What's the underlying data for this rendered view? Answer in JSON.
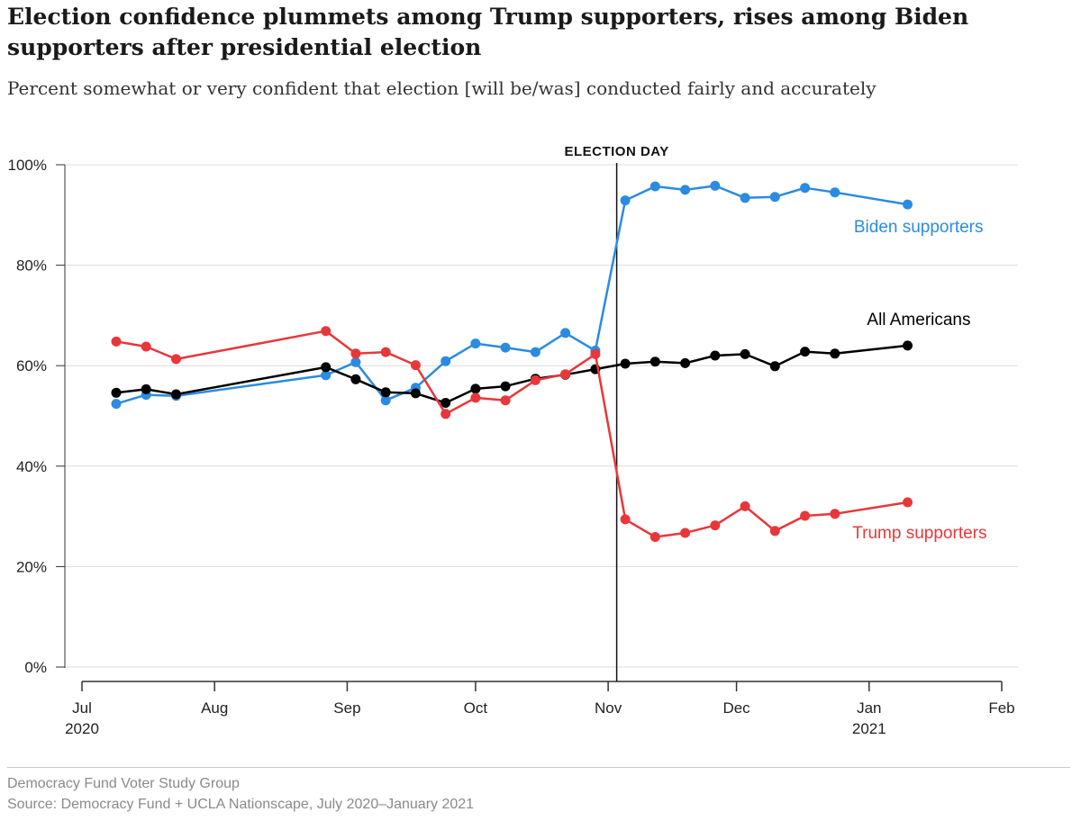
{
  "title": "Election confidence plummets among Trump supporters, rises among Biden supporters after presidential election",
  "subtitle": "Percent somewhat or very confident that election [will be/was] conducted fairly and accurately",
  "footer": {
    "org": "Democracy Fund Voter Study Group",
    "source": "Source: Democracy Fund + UCLA Nationscape, July 2020–January 2021"
  },
  "chart_data": {
    "type": "line",
    "xlabel": "",
    "ylabel": "",
    "x_range": [
      "2020-07-01",
      "2021-02-01"
    ],
    "ylim": [
      0,
      100
    ],
    "yticks": [
      0,
      20,
      40,
      60,
      80,
      100
    ],
    "ytick_labels": [
      "0%",
      "20%",
      "40%",
      "60%",
      "80%",
      "100%"
    ],
    "xticks": [
      {
        "date": "2020-07-01",
        "label": "Jul",
        "label2": "2020"
      },
      {
        "date": "2020-08-01",
        "label": "Aug",
        "label2": ""
      },
      {
        "date": "2020-09-01",
        "label": "Sep",
        "label2": ""
      },
      {
        "date": "2020-10-01",
        "label": "Oct",
        "label2": ""
      },
      {
        "date": "2020-11-01",
        "label": "Nov",
        "label2": ""
      },
      {
        "date": "2020-12-01",
        "label": "Dec",
        "label2": ""
      },
      {
        "date": "2021-01-01",
        "label": "Jan",
        "label2": "2021"
      },
      {
        "date": "2021-02-01",
        "label": "Feb",
        "label2": ""
      }
    ],
    "grid": true,
    "annotation": {
      "label": "ELECTION DAY",
      "date": "2020-11-03"
    },
    "series": [
      {
        "name": "Biden supporters",
        "color": "#2b8be0",
        "points": [
          {
            "date": "2020-07-09",
            "value": 52.4
          },
          {
            "date": "2020-07-16",
            "value": 54.2
          },
          {
            "date": "2020-07-23",
            "value": 54.0
          },
          {
            "date": "2020-08-27",
            "value": 58.1
          },
          {
            "date": "2020-09-03",
            "value": 60.7
          },
          {
            "date": "2020-09-10",
            "value": 53.1
          },
          {
            "date": "2020-09-17",
            "value": 55.6
          },
          {
            "date": "2020-09-24",
            "value": 60.9
          },
          {
            "date": "2020-10-01",
            "value": 64.4
          },
          {
            "date": "2020-10-08",
            "value": 63.6
          },
          {
            "date": "2020-10-15",
            "value": 62.7
          },
          {
            "date": "2020-10-22",
            "value": 66.5
          },
          {
            "date": "2020-10-29",
            "value": 63.0
          },
          {
            "date": "2020-11-05",
            "value": 92.9
          },
          {
            "date": "2020-11-12",
            "value": 95.7
          },
          {
            "date": "2020-11-19",
            "value": 95.0
          },
          {
            "date": "2020-11-26",
            "value": 95.8
          },
          {
            "date": "2020-12-03",
            "value": 93.4
          },
          {
            "date": "2020-12-10",
            "value": 93.6
          },
          {
            "date": "2020-12-17",
            "value": 95.4
          },
          {
            "date": "2020-12-24",
            "value": 94.5
          },
          {
            "date": "2021-01-10",
            "value": 92.1
          }
        ]
      },
      {
        "name": "All Americans",
        "color": "#000000",
        "points": [
          {
            "date": "2020-07-09",
            "value": 54.6
          },
          {
            "date": "2020-07-16",
            "value": 55.3
          },
          {
            "date": "2020-07-23",
            "value": 54.3
          },
          {
            "date": "2020-08-27",
            "value": 59.7
          },
          {
            "date": "2020-09-03",
            "value": 57.3
          },
          {
            "date": "2020-09-10",
            "value": 54.7
          },
          {
            "date": "2020-09-17",
            "value": 54.5
          },
          {
            "date": "2020-09-24",
            "value": 52.6
          },
          {
            "date": "2020-10-01",
            "value": 55.4
          },
          {
            "date": "2020-10-08",
            "value": 55.9
          },
          {
            "date": "2020-10-15",
            "value": 57.4
          },
          {
            "date": "2020-10-22",
            "value": 58.2
          },
          {
            "date": "2020-10-29",
            "value": 59.3
          },
          {
            "date": "2020-11-05",
            "value": 60.4
          },
          {
            "date": "2020-11-12",
            "value": 60.8
          },
          {
            "date": "2020-11-19",
            "value": 60.5
          },
          {
            "date": "2020-11-26",
            "value": 62.0
          },
          {
            "date": "2020-12-03",
            "value": 62.3
          },
          {
            "date": "2020-12-10",
            "value": 59.9
          },
          {
            "date": "2020-12-17",
            "value": 62.8
          },
          {
            "date": "2020-12-24",
            "value": 62.4
          },
          {
            "date": "2021-01-10",
            "value": 64.0
          }
        ]
      },
      {
        "name": "Trump supporters",
        "color": "#e8373a",
        "points": [
          {
            "date": "2020-07-09",
            "value": 64.8
          },
          {
            "date": "2020-07-16",
            "value": 63.8
          },
          {
            "date": "2020-07-23",
            "value": 61.3
          },
          {
            "date": "2020-08-27",
            "value": 66.9
          },
          {
            "date": "2020-09-03",
            "value": 62.4
          },
          {
            "date": "2020-09-10",
            "value": 62.7
          },
          {
            "date": "2020-09-17",
            "value": 60.1
          },
          {
            "date": "2020-09-24",
            "value": 50.4
          },
          {
            "date": "2020-10-01",
            "value": 53.6
          },
          {
            "date": "2020-10-08",
            "value": 53.1
          },
          {
            "date": "2020-10-15",
            "value": 57.1
          },
          {
            "date": "2020-10-22",
            "value": 58.3
          },
          {
            "date": "2020-10-29",
            "value": 62.3
          },
          {
            "date": "2020-11-05",
            "value": 29.4
          },
          {
            "date": "2020-11-12",
            "value": 25.9
          },
          {
            "date": "2020-11-19",
            "value": 26.7
          },
          {
            "date": "2020-11-26",
            "value": 28.2
          },
          {
            "date": "2020-12-03",
            "value": 32.0
          },
          {
            "date": "2020-12-10",
            "value": 27.1
          },
          {
            "date": "2020-12-17",
            "value": 30.1
          },
          {
            "date": "2020-12-24",
            "value": 30.5
          },
          {
            "date": "2021-01-10",
            "value": 32.8
          }
        ]
      }
    ]
  }
}
